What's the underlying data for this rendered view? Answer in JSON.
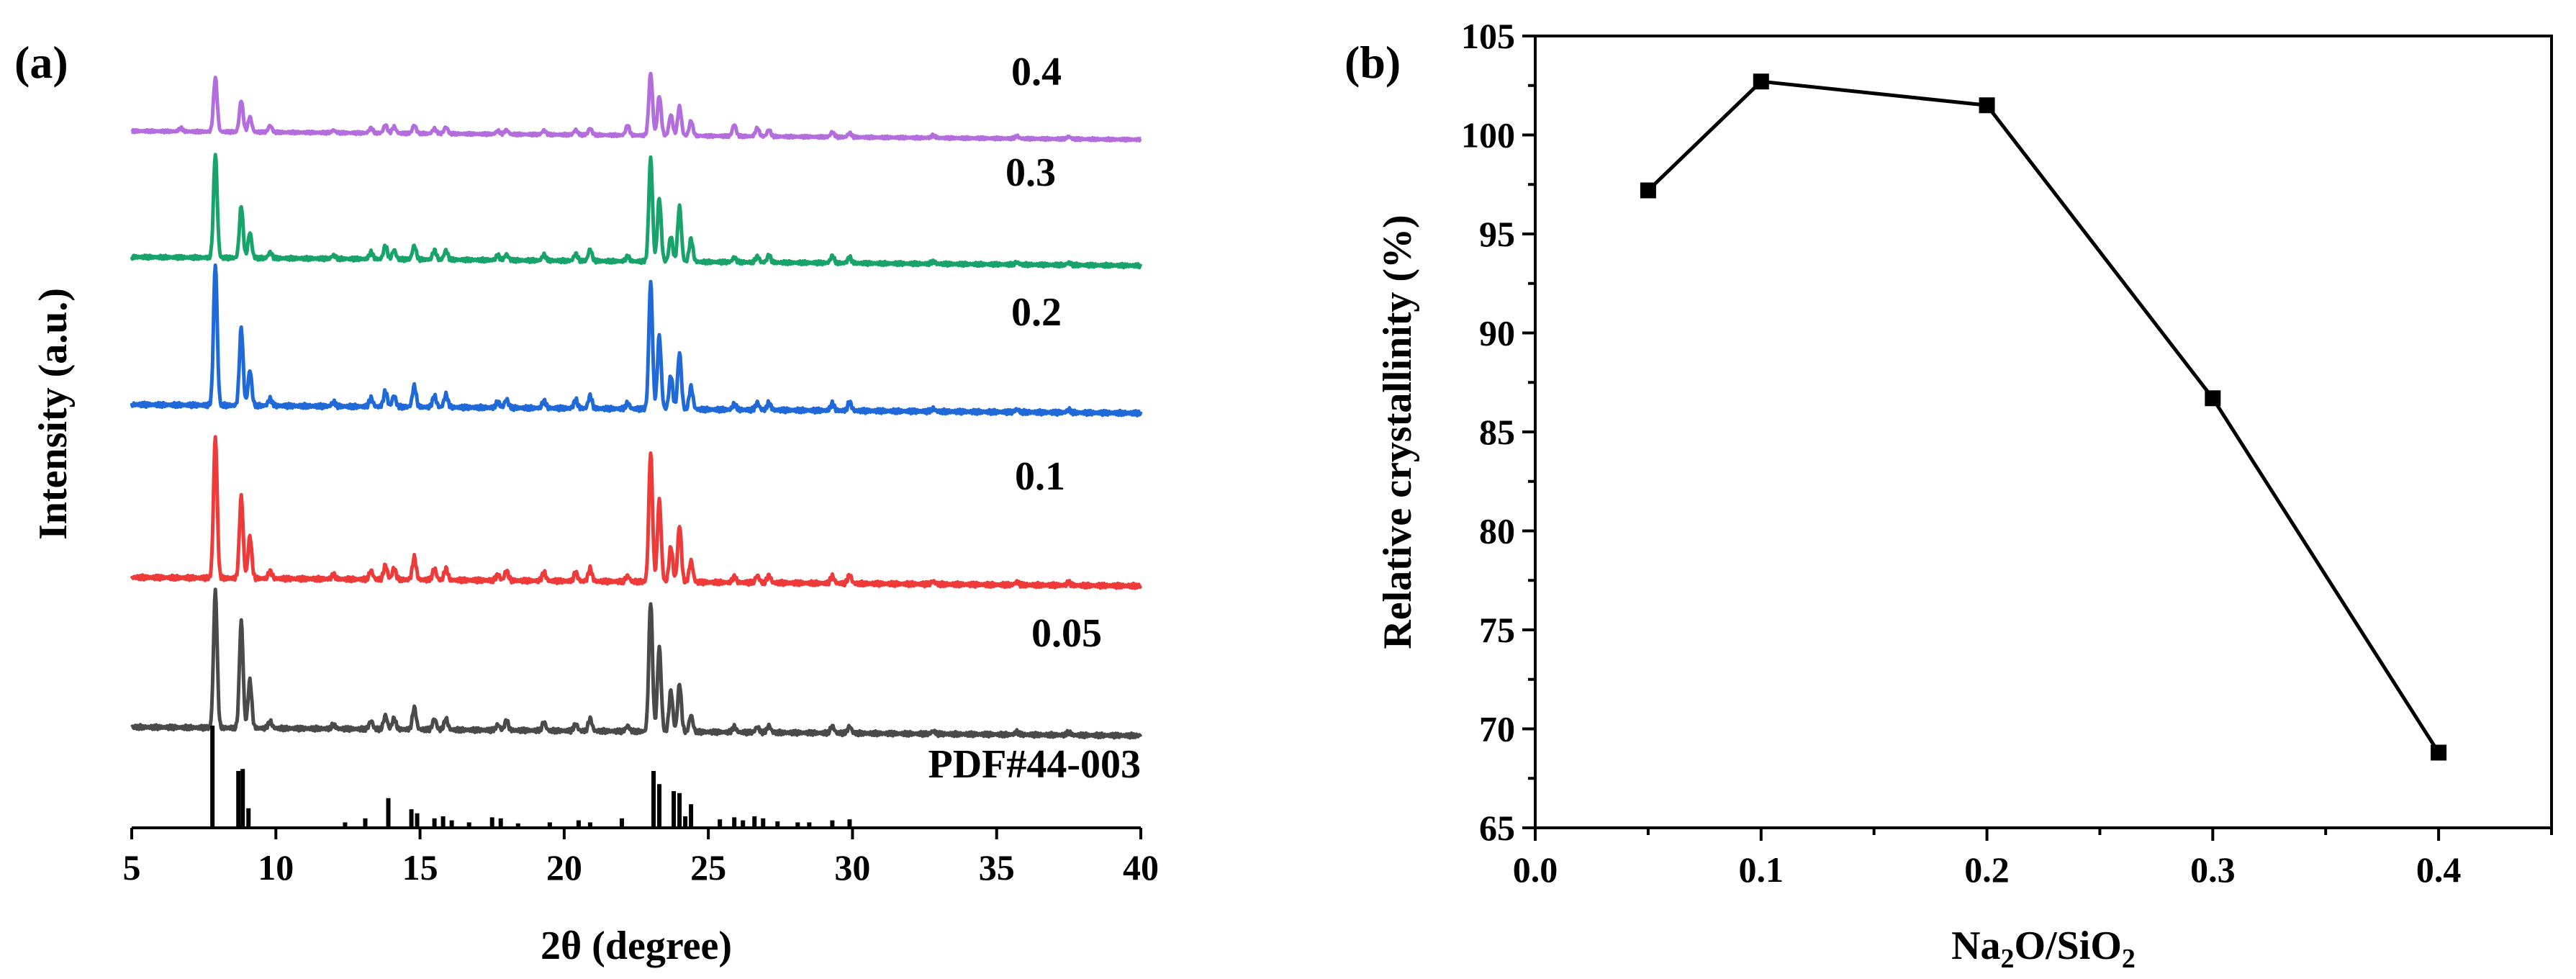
{
  "chart_data": [
    {
      "panel": "(a)",
      "type": "line",
      "xlabel": "2θ (degree)",
      "ylabel": "Intensity (a.u.)",
      "xlim": [
        5,
        40
      ],
      "xticks": [
        "5",
        "10",
        "15",
        "20",
        "25",
        "30",
        "35",
        "40"
      ],
      "peak_positions_2theta": [
        6.7,
        7.9,
        8.8,
        9.1,
        9.8,
        12.0,
        13.3,
        13.8,
        14.1,
        14.8,
        15.5,
        15.9,
        17.7,
        18.0,
        19.3,
        20.4,
        20.9,
        22.2,
        23.0,
        23.3,
        23.7,
        24.0,
        24.4,
        25.9,
        26.7,
        27.1,
        29.3,
        29.9,
        32.8,
        35.7,
        37.5
      ],
      "series": [
        {
          "name": "0.05",
          "color": "#4a4a4a",
          "peak_intensity": [
            0.0,
            1.0,
            0.78,
            0.35,
            0.05,
            0.03,
            0.06,
            0.1,
            0.08,
            0.16,
            0.08,
            0.08,
            0.04,
            0.07,
            0.06,
            0.05,
            0.09,
            0.04,
            0.95,
            0.62,
            0.3,
            0.35,
            0.12,
            0.04,
            0.04,
            0.05,
            0.05,
            0.05,
            0.02,
            0.02,
            0.02
          ]
        },
        {
          "name": "0.1",
          "color": "#ef3a3a",
          "peak_intensity": [
            0.0,
            1.0,
            0.58,
            0.3,
            0.05,
            0.03,
            0.06,
            0.1,
            0.08,
            0.16,
            0.08,
            0.08,
            0.04,
            0.07,
            0.06,
            0.06,
            0.09,
            0.04,
            0.92,
            0.58,
            0.25,
            0.4,
            0.15,
            0.04,
            0.05,
            0.05,
            0.05,
            0.06,
            0.02,
            0.02,
            0.02
          ]
        },
        {
          "name": "0.2",
          "color": "#1f6ad8",
          "peak_intensity": [
            0.0,
            1.0,
            0.55,
            0.25,
            0.05,
            0.03,
            0.06,
            0.11,
            0.08,
            0.15,
            0.08,
            0.09,
            0.04,
            0.06,
            0.05,
            0.06,
            0.09,
            0.04,
            0.9,
            0.52,
            0.24,
            0.4,
            0.16,
            0.04,
            0.05,
            0.05,
            0.05,
            0.06,
            0.02,
            0.02,
            0.02
          ]
        },
        {
          "name": "0.3",
          "color": "#17a36a",
          "peak_intensity": [
            0.0,
            0.9,
            0.45,
            0.22,
            0.05,
            0.03,
            0.06,
            0.12,
            0.08,
            0.12,
            0.08,
            0.08,
            0.04,
            0.05,
            0.05,
            0.06,
            0.1,
            0.04,
            0.9,
            0.55,
            0.22,
            0.48,
            0.2,
            0.04,
            0.05,
            0.06,
            0.06,
            0.05,
            0.02,
            0.02,
            0.02
          ]
        },
        {
          "name": "0.4",
          "color": "#b36ddc",
          "peak_intensity": [
            0.04,
            0.65,
            0.38,
            0.18,
            0.08,
            0.03,
            0.06,
            0.1,
            0.08,
            0.1,
            0.06,
            0.08,
            0.04,
            0.05,
            0.05,
            0.06,
            0.08,
            0.12,
            0.75,
            0.48,
            0.25,
            0.35,
            0.18,
            0.14,
            0.1,
            0.08,
            0.06,
            0.05,
            0.03,
            0.03,
            0.03
          ]
        }
      ],
      "reference": {
        "name": "PDF#44-003",
        "sticks": [
          [
            7.8,
            1.0
          ],
          [
            8.7,
            0.55
          ],
          [
            8.85,
            0.57
          ],
          [
            9.05,
            0.18
          ],
          [
            12.4,
            0.04
          ],
          [
            13.1,
            0.08
          ],
          [
            13.9,
            0.28
          ],
          [
            14.7,
            0.17
          ],
          [
            14.9,
            0.13
          ],
          [
            15.5,
            0.08
          ],
          [
            15.8,
            0.1
          ],
          [
            16.1,
            0.06
          ],
          [
            16.7,
            0.04
          ],
          [
            17.5,
            0.09
          ],
          [
            17.8,
            0.08
          ],
          [
            18.4,
            0.03
          ],
          [
            19.5,
            0.04
          ],
          [
            20.5,
            0.06
          ],
          [
            20.9,
            0.04
          ],
          [
            22.0,
            0.08
          ],
          [
            23.1,
            0.55
          ],
          [
            23.3,
            0.42
          ],
          [
            23.8,
            0.35
          ],
          [
            24.0,
            0.33
          ],
          [
            24.2,
            0.1
          ],
          [
            24.4,
            0.22
          ],
          [
            25.4,
            0.07
          ],
          [
            25.9,
            0.09
          ],
          [
            26.2,
            0.06
          ],
          [
            26.6,
            0.1
          ],
          [
            26.9,
            0.08
          ],
          [
            27.4,
            0.05
          ],
          [
            28.1,
            0.04
          ],
          [
            28.5,
            0.04
          ],
          [
            29.3,
            0.06
          ],
          [
            29.9,
            0.07
          ]
        ]
      }
    },
    {
      "panel": "(b)",
      "type": "line",
      "xlabel": "Na₂O/SiO₂",
      "ylabel": "Relative crystallinity (%)",
      "xlim": [
        0.0,
        0.45
      ],
      "ylim": [
        65,
        105
      ],
      "xticks": [
        "0.0",
        "0.1",
        "0.2",
        "0.3",
        "0.4"
      ],
      "yticks": [
        "65",
        "70",
        "75",
        "80",
        "85",
        "90",
        "95",
        "100",
        "105"
      ],
      "x": [
        0.05,
        0.1,
        0.2,
        0.3,
        0.4
      ],
      "values": [
        97.2,
        102.7,
        101.5,
        86.7,
        68.8
      ],
      "marker": "square",
      "color": "#000000"
    }
  ]
}
